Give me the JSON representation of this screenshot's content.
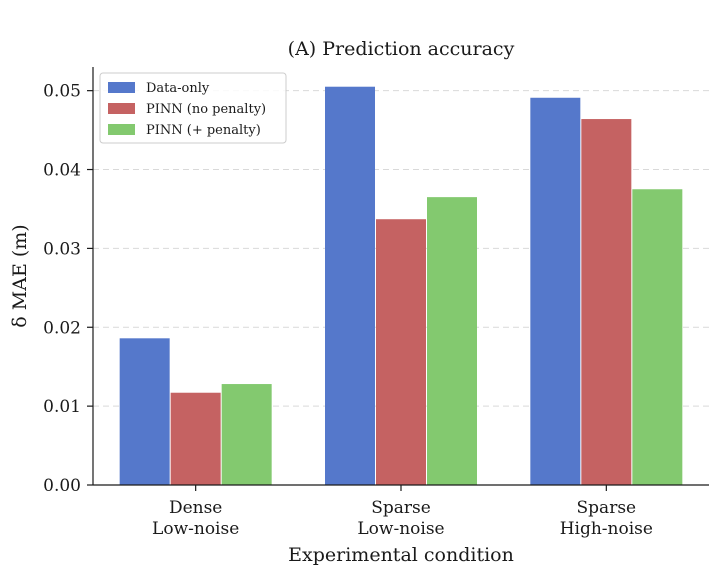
{
  "chart_data": {
    "type": "bar",
    "title": "(A) Prediction accuracy",
    "xlabel": "Experimental condition",
    "ylabel": "δ MAE (m)",
    "categories": [
      [
        "Dense",
        "Low-noise"
      ],
      [
        "Sparse",
        "Low-noise"
      ],
      [
        "Sparse",
        "High-noise"
      ]
    ],
    "series": [
      {
        "name": "Data-only",
        "color": "#5578cb",
        "values": [
          0.0186,
          0.0505,
          0.0491
        ]
      },
      {
        "name": "PINN (no penalty)",
        "color": "#c56262",
        "values": [
          0.0117,
          0.0337,
          0.0464
        ]
      },
      {
        "name": "PINN (+ penalty)",
        "color": "#83c96f",
        "values": [
          0.0128,
          0.0365,
          0.0375
        ]
      }
    ],
    "ylim": [
      0,
      0.053
    ],
    "yticks": [
      "0.00",
      "0.01",
      "0.02",
      "0.03",
      "0.04",
      "0.05"
    ],
    "grid": "y-dashed",
    "legend_position": "top-left"
  }
}
